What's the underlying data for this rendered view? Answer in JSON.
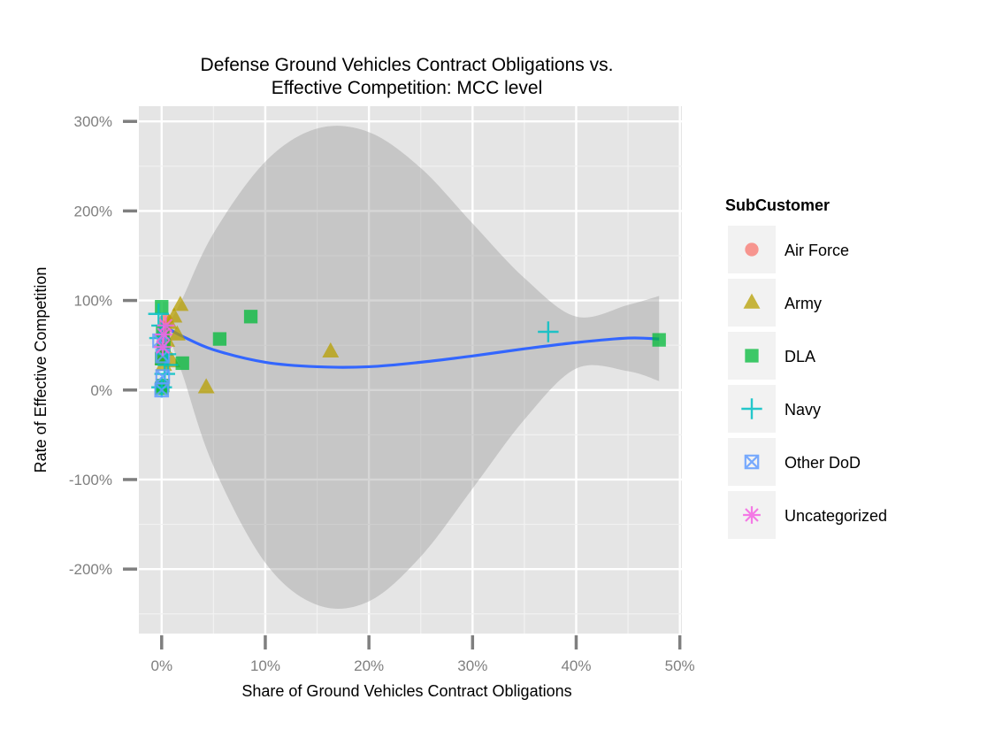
{
  "chart_data": {
    "type": "scatter",
    "title": [
      "Defense Ground Vehicles Contract Obligations vs.",
      "Effective Competition: MCC level"
    ],
    "xlabel": "Share of Ground Vehicles Contract Obligations",
    "ylabel": "Rate of Effective Competition",
    "xlim": [
      -0.022,
      0.502
    ],
    "ylim": [
      -2.72,
      3.17
    ],
    "x_ticks": [
      0,
      0.1,
      0.2,
      0.3,
      0.4,
      0.5
    ],
    "x_tick_labels": [
      "0%",
      "10%",
      "20%",
      "30%",
      "40%",
      "50%"
    ],
    "y_ticks": [
      -2,
      -1,
      0,
      1,
      2,
      3
    ],
    "y_tick_labels": [
      "-200%",
      "-100%",
      "0%",
      "100%",
      "200%",
      "300%"
    ],
    "grid": true,
    "legend": {
      "title": "SubCustomer",
      "position": "right",
      "entries": [
        {
          "name": "Air Force",
          "shape": "circle",
          "color": "#F8766D"
        },
        {
          "name": "Army",
          "shape": "triangle",
          "color": "#B79F00"
        },
        {
          "name": "DLA",
          "shape": "square",
          "color": "#00BA38"
        },
        {
          "name": "Navy",
          "shape": "plus",
          "color": "#00BFC4"
        },
        {
          "name": "Other DoD",
          "shape": "boxx",
          "color": "#619CFF"
        },
        {
          "name": "Uncategorized",
          "shape": "asterisk",
          "color": "#F564E3"
        }
      ]
    },
    "series": [
      {
        "name": "Air Force",
        "points": [
          [
            0.002,
            0.62
          ],
          [
            0.004,
            0.78
          ],
          [
            0.001,
            0.5
          ],
          [
            0.003,
            0.7
          ],
          [
            0.0005,
            0.4
          ]
        ]
      },
      {
        "name": "Army",
        "points": [
          [
            0.018,
            0.95
          ],
          [
            0.012,
            0.82
          ],
          [
            0.015,
            0.62
          ],
          [
            0.007,
            0.75
          ],
          [
            0.005,
            0.55
          ],
          [
            0.003,
            0.45
          ],
          [
            0.001,
            0.35
          ],
          [
            0.002,
            0.28
          ],
          [
            0.01,
            0.32
          ],
          [
            0.043,
            0.03
          ],
          [
            0.163,
            0.43
          ]
        ]
      },
      {
        "name": "DLA",
        "points": [
          [
            0.0,
            0.93
          ],
          [
            0.001,
            0.65
          ],
          [
            0.002,
            0.5
          ],
          [
            0.0,
            0.35
          ],
          [
            0.001,
            0.05
          ],
          [
            0.0,
            0.02
          ],
          [
            0.02,
            0.3
          ],
          [
            0.056,
            0.57
          ],
          [
            0.086,
            0.82
          ],
          [
            0.48,
            0.56
          ]
        ]
      },
      {
        "name": "Navy",
        "points": [
          [
            -0.003,
            0.85
          ],
          [
            0.0,
            0.72
          ],
          [
            -0.002,
            0.58
          ],
          [
            0.004,
            0.4
          ],
          [
            0.006,
            0.28
          ],
          [
            0.003,
            0.18
          ],
          [
            0.0,
            0.03
          ],
          [
            0.373,
            0.65
          ]
        ]
      },
      {
        "name": "Other DoD",
        "points": [
          [
            0.0,
            0.0
          ],
          [
            0.001,
            0.38
          ],
          [
            -0.002,
            0.55
          ],
          [
            0.001,
            0.15
          ]
        ]
      },
      {
        "name": "Uncategorized",
        "points": [
          [
            0.004,
            0.72
          ],
          [
            0.002,
            0.62
          ],
          [
            0.001,
            0.48
          ]
        ]
      }
    ],
    "smooth": {
      "color": "#3366FF",
      "x": [
        0.0,
        0.005,
        0.008,
        0.02,
        0.05,
        0.1,
        0.15,
        0.2,
        0.25,
        0.3,
        0.35,
        0.4,
        0.45,
        0.48
      ],
      "y": [
        0.45,
        0.64,
        0.67,
        0.6,
        0.45,
        0.31,
        0.26,
        0.26,
        0.31,
        0.38,
        0.46,
        0.53,
        0.58,
        0.57
      ],
      "ci_upper": [
        0.45,
        0.7,
        0.76,
        1.02,
        1.75,
        2.55,
        2.92,
        2.88,
        2.48,
        1.86,
        1.25,
        0.82,
        0.95,
        1.05
      ],
      "ci_lower": [
        0.45,
        0.58,
        0.56,
        0.18,
        -0.85,
        -1.93,
        -2.4,
        -2.36,
        -1.86,
        -1.1,
        -0.33,
        0.24,
        0.21,
        0.1
      ]
    }
  }
}
